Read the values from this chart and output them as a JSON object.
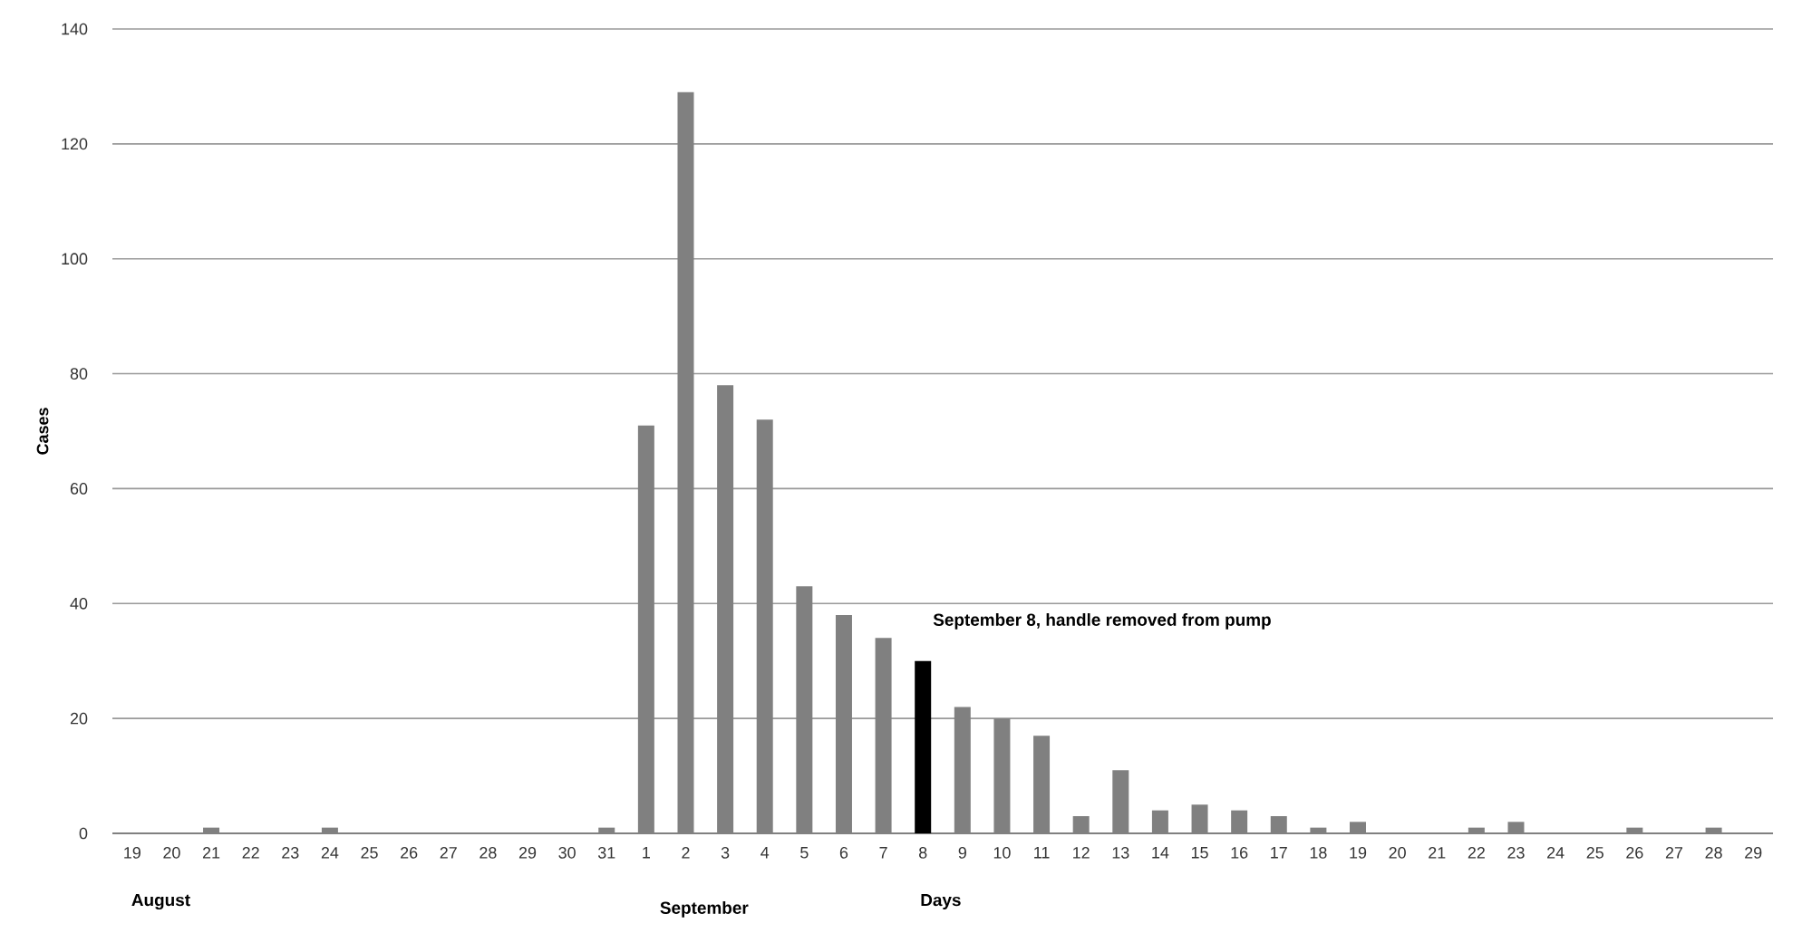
{
  "chart_data": {
    "type": "bar",
    "ylabel": "Cases",
    "xlabel": "Days",
    "categories": [
      "19",
      "20",
      "21",
      "22",
      "23",
      "24",
      "25",
      "26",
      "27",
      "28",
      "29",
      "30",
      "31",
      "1",
      "2",
      "3",
      "4",
      "5",
      "6",
      "7",
      "8",
      "9",
      "10",
      "11",
      "12",
      "13",
      "14",
      "15",
      "16",
      "17",
      "18",
      "19",
      "20",
      "21",
      "22",
      "23",
      "24",
      "25",
      "26",
      "27",
      "28",
      "29"
    ],
    "values": [
      0,
      0,
      1,
      0,
      0,
      1,
      0,
      0,
      0,
      0,
      0,
      0,
      1,
      71,
      129,
      78,
      72,
      43,
      38,
      34,
      30,
      22,
      20,
      17,
      3,
      11,
      4,
      5,
      4,
      3,
      1,
      2,
      0,
      0,
      1,
      2,
      0,
      0,
      1,
      0,
      1,
      0
    ],
    "colors": [
      "#808080",
      "#808080",
      "#808080",
      "#808080",
      "#808080",
      "#808080",
      "#808080",
      "#808080",
      "#808080",
      "#808080",
      "#808080",
      "#808080",
      "#808080",
      "#808080",
      "#808080",
      "#808080",
      "#808080",
      "#808080",
      "#808080",
      "#808080",
      "#000000",
      "#808080",
      "#808080",
      "#808080",
      "#808080",
      "#808080",
      "#808080",
      "#808080",
      "#808080",
      "#808080",
      "#808080",
      "#808080",
      "#808080",
      "#808080",
      "#808080",
      "#808080",
      "#808080",
      "#808080",
      "#808080",
      "#808080",
      "#808080",
      "#808080"
    ],
    "ylim": [
      0,
      140
    ],
    "yticks": [
      0,
      20,
      40,
      60,
      80,
      100,
      120,
      140
    ],
    "grid": "y",
    "annotations": [
      {
        "text": "September 8, handle removed from pump",
        "x": "8",
        "y": 30
      },
      "August",
      "September"
    ]
  }
}
